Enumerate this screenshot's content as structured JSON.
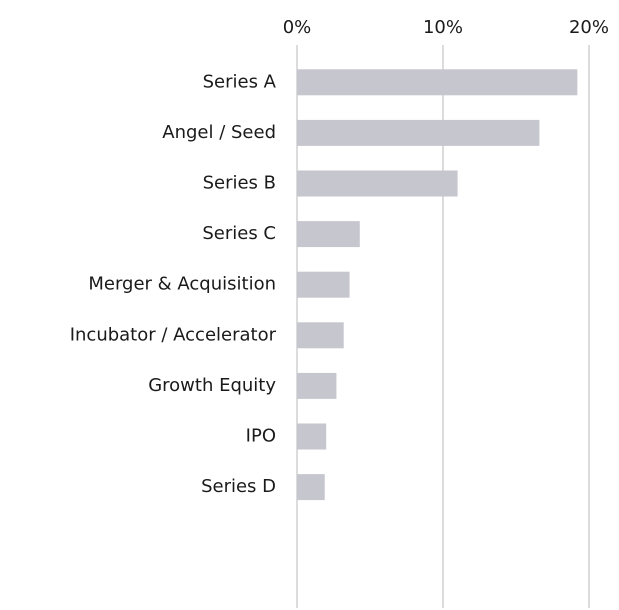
{
  "chart_data": {
    "type": "bar",
    "orientation": "horizontal",
    "categories": [
      "Series A",
      "Angel / Seed",
      "Series B",
      "Series C",
      "Merger & Acquisition",
      "Incubator / Accelerator",
      "Growth Equity",
      "IPO",
      "Series D"
    ],
    "values": [
      19.2,
      16.6,
      11.0,
      4.3,
      3.6,
      3.2,
      2.7,
      2.0,
      1.9
    ],
    "color": "#c6c6ce",
    "xlim": [
      0,
      20
    ],
    "xticks": [
      {
        "value": 0,
        "label": "0%"
      },
      {
        "value": 10,
        "label": "10%"
      },
      {
        "value": 20,
        "label": "20%"
      }
    ],
    "grid": true
  }
}
